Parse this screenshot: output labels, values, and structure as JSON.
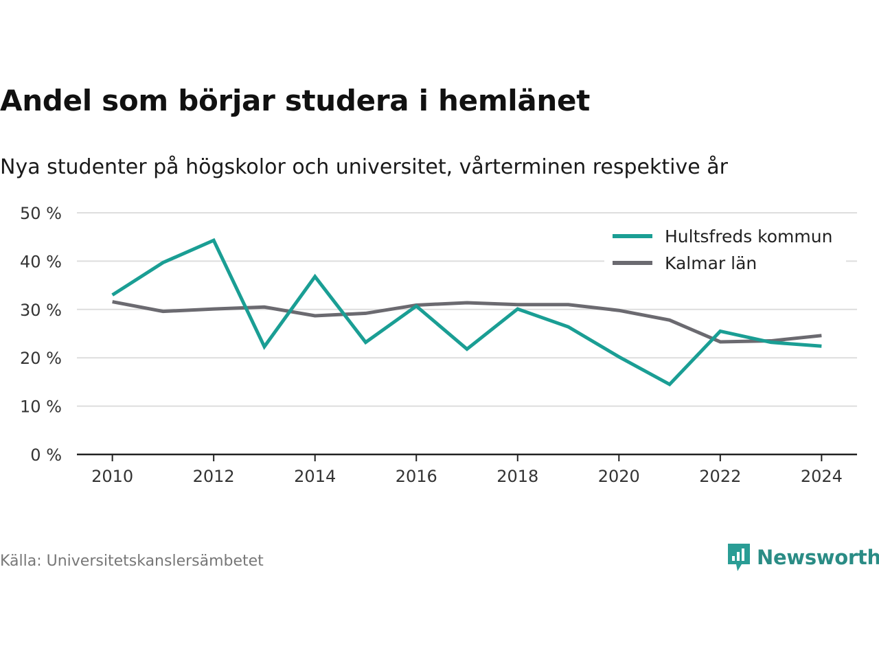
{
  "title": "Andel som börjar studera i hemlänet",
  "subtitle": "Nya studenter på högskolor och universitet, vårterminen respektive år",
  "source": "Källa: Universitetskanslersämbetet",
  "brand": {
    "name": "Newsworthy",
    "icon": "newsworthy-logo-icon",
    "color": "#2a9d95"
  },
  "chart_data": {
    "type": "line",
    "x": [
      2010,
      2011,
      2012,
      2013,
      2014,
      2015,
      2016,
      2017,
      2018,
      2019,
      2020,
      2021,
      2022,
      2023,
      2024
    ],
    "series": [
      {
        "name": "Hultsfreds kommun",
        "color": "#1a9e94",
        "values": [
          33,
          39.7,
          44.3,
          22.3,
          36.8,
          23.2,
          30.7,
          21.8,
          30.1,
          26.4,
          20.2,
          14.5,
          25.5,
          23.2,
          22.4
        ]
      },
      {
        "name": "Kalmar län",
        "color": "#6b6a70",
        "values": [
          31.6,
          29.6,
          30.1,
          30.5,
          28.7,
          29.2,
          30.9,
          31.4,
          31.0,
          31.0,
          29.8,
          27.8,
          23.3,
          23.5,
          24.6
        ]
      }
    ],
    "y_ticks": [
      0,
      10,
      20,
      30,
      40,
      50
    ],
    "y_tick_labels": [
      "0 %",
      "10 %",
      "20 %",
      "30 %",
      "40 %",
      "50 %"
    ],
    "x_ticks": [
      2010,
      2012,
      2014,
      2016,
      2018,
      2020,
      2022,
      2024
    ],
    "x_tick_labels": [
      "2010",
      "2012",
      "2014",
      "2016",
      "2018",
      "2020",
      "2022",
      "2024"
    ],
    "ylim": [
      0,
      50
    ],
    "xlim": [
      2009.3,
      2024.7
    ],
    "grid": true,
    "legend_position": "top-right"
  }
}
